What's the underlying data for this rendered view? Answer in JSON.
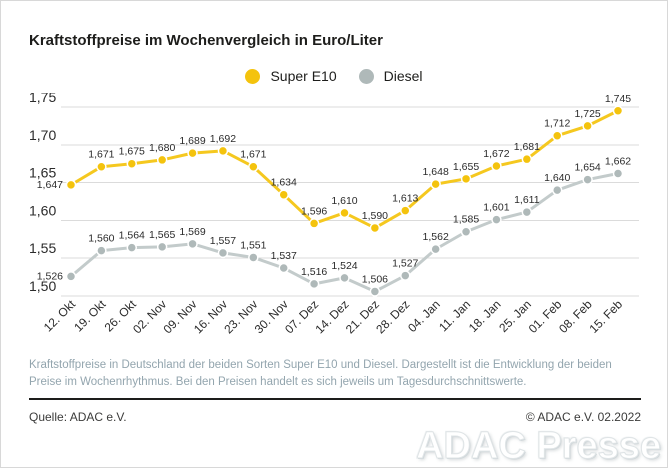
{
  "page": {
    "title": "Kraftstoffpreise im Wochenvergleich in Euro/Liter",
    "description": "Kraftstoffpreise in Deutschland der beiden Sorten Super E10 und Diesel. Dargestellt ist die Entwicklung der beiden Preise im Wochenrhythmus. Bei den Preisen handelt es sich jeweils um Tagesdurchschnittswerte.",
    "source": "Quelle: ADAC e.V.",
    "copyright": "© ADAC e.V. 02.2022",
    "watermark": "ADAC Presse"
  },
  "colors": {
    "super_e10": "#F4C30D",
    "super_e10_line": "#F5C81F",
    "diesel": "#AFB9B9",
    "diesel_line": "#C3CBCB",
    "grid": "#DBDBDB",
    "axis_text": "#2B2B2B",
    "value_label_text": "#2B2B2B",
    "title_text": "#1D1D1B",
    "description_text": "#93A5AE",
    "separator": "#1D1D1B"
  },
  "chart_data": {
    "type": "line",
    "title": "Kraftstoffpreise im Wochenvergleich in Euro/Liter",
    "unit": "Euro/Liter",
    "categories": [
      "12. Okt",
      "19. Okt",
      "26. Okt",
      "02. Nov",
      "09. Nov",
      "16. Nov",
      "23. Nov",
      "30. Nov",
      "07. Dez",
      "14. Dez",
      "21. Dez",
      "28. Dez",
      "04. Jan",
      "11. Jan",
      "18. Jan",
      "25. Jan",
      "01. Feb",
      "08. Feb",
      "15. Feb"
    ],
    "series": [
      {
        "name": "Super E10",
        "color": "#F4C30D",
        "line_color": "#F5C81F",
        "values": [
          1.647,
          1.671,
          1.675,
          1.68,
          1.689,
          1.692,
          1.671,
          1.634,
          1.596,
          1.61,
          1.59,
          1.613,
          1.648,
          1.655,
          1.672,
          1.681,
          1.712,
          1.725,
          1.745
        ]
      },
      {
        "name": "Diesel",
        "color": "#AFB9B9",
        "line_color": "#C3CBCB",
        "values": [
          1.526,
          1.56,
          1.564,
          1.565,
          1.569,
          1.557,
          1.551,
          1.537,
          1.516,
          1.524,
          1.506,
          1.527,
          1.562,
          1.585,
          1.601,
          1.611,
          1.64,
          1.654,
          1.662
        ]
      }
    ],
    "ylim": [
      1.5,
      1.75
    ],
    "yticks": [
      {
        "value": 1.5,
        "label": "1,50"
      },
      {
        "value": 1.55,
        "label": "1,55"
      },
      {
        "value": 1.6,
        "label": "1,60"
      },
      {
        "value": 1.65,
        "label": "1,65"
      },
      {
        "value": 1.7,
        "label": "1,70"
      },
      {
        "value": 1.75,
        "label": "1,75"
      }
    ],
    "grid": "horizontal",
    "legend_position": "top-center",
    "value_labels": true,
    "decimal_separator": ","
  }
}
